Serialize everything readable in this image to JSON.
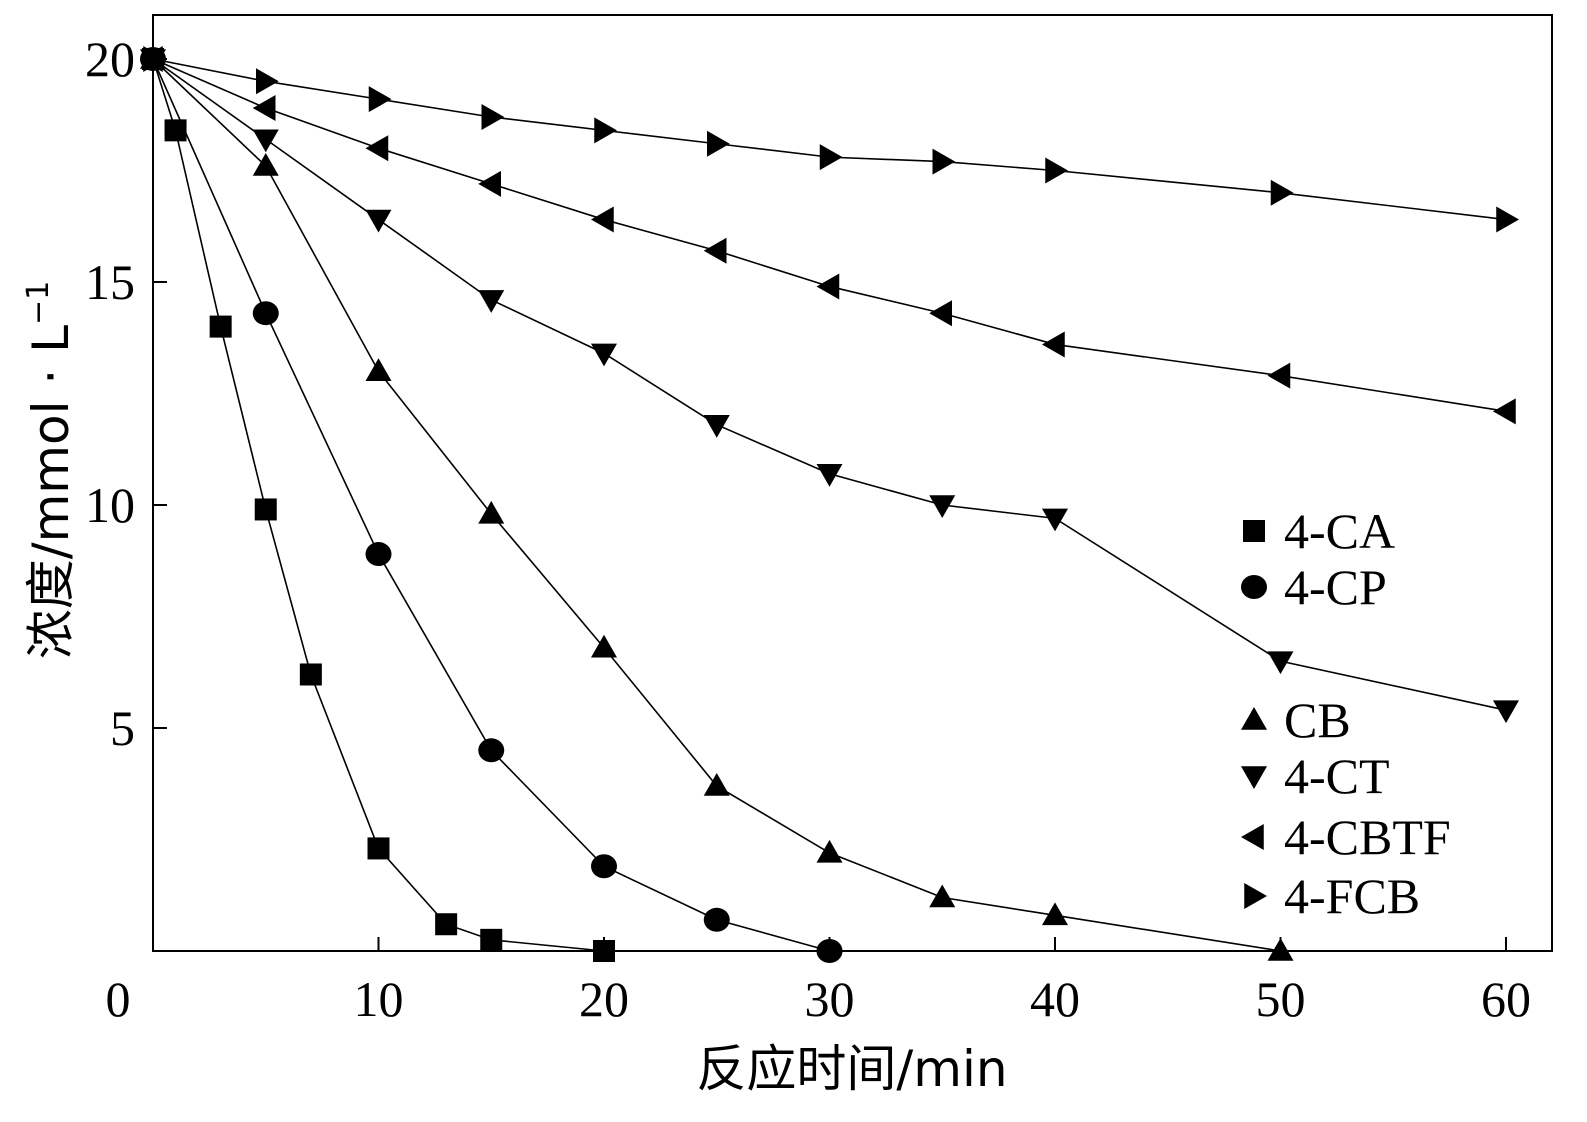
{
  "chart_data": {
    "type": "line",
    "xlabel": "反应时间/min",
    "ylabel": "浓度/mmol · L",
    "ylabel_superscript": "−1",
    "xlim": [
      0,
      60
    ],
    "ylim": [
      0,
      20
    ],
    "x_ticks": [
      0,
      10,
      20,
      30,
      40,
      50,
      60
    ],
    "y_ticks": [
      5,
      10,
      15,
      20
    ],
    "grid": false,
    "legend_position": "right",
    "series": [
      {
        "name": "4-CA",
        "marker": "square",
        "x": [
          0,
          1,
          3,
          5,
          7,
          10,
          13,
          15,
          20
        ],
        "y": [
          20,
          18.4,
          14.0,
          9.9,
          6.2,
          2.3,
          0.6,
          0.25,
          0
        ]
      },
      {
        "name": "4-CP",
        "marker": "circle",
        "x": [
          0,
          5,
          10,
          15,
          20,
          25,
          30
        ],
        "y": [
          20,
          14.3,
          8.9,
          4.5,
          1.9,
          0.7,
          0
        ]
      },
      {
        "name": "CB",
        "marker": "triangle-up",
        "x": [
          0,
          5,
          10,
          15,
          20,
          25,
          30,
          35,
          40,
          50
        ],
        "y": [
          20,
          17.6,
          13.0,
          9.8,
          6.8,
          3.7,
          2.2,
          1.2,
          0.8,
          0
        ]
      },
      {
        "name": "4-CT",
        "marker": "triangle-down",
        "x": [
          0,
          5,
          10,
          15,
          20,
          25,
          30,
          35,
          40,
          50,
          60
        ],
        "y": [
          20,
          18.2,
          16.4,
          14.6,
          13.4,
          11.8,
          10.7,
          10.0,
          9.7,
          6.5,
          5.4
        ]
      },
      {
        "name": "4-CBTF",
        "marker": "triangle-left",
        "x": [
          0,
          5,
          10,
          15,
          20,
          25,
          30,
          35,
          40,
          50,
          60
        ],
        "y": [
          20,
          18.9,
          18.0,
          17.2,
          16.4,
          15.7,
          14.9,
          14.3,
          13.6,
          12.9,
          12.1
        ]
      },
      {
        "name": "4-FCB",
        "marker": "triangle-right",
        "x": [
          0,
          5,
          10,
          15,
          20,
          25,
          30,
          35,
          40,
          50,
          60
        ],
        "y": [
          20,
          19.5,
          19.1,
          18.7,
          18.4,
          18.1,
          17.8,
          17.7,
          17.5,
          17.0,
          16.4
        ]
      }
    ]
  }
}
